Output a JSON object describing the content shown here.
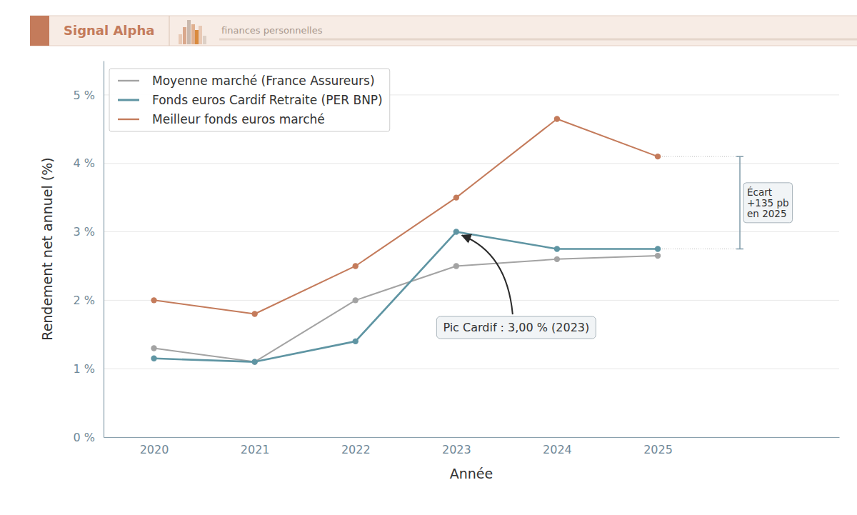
{
  "header": {
    "brand": "Signal Alpha",
    "tagline": "finances personnelles"
  },
  "chart_data": {
    "type": "line",
    "x": [
      2020,
      2021,
      2022,
      2023,
      2024,
      2025
    ],
    "xlim": [
      2019.5,
      2026.8
    ],
    "xticks": [
      2020,
      2021,
      2022,
      2023,
      2024,
      2025
    ],
    "ylim": [
      0,
      5.5
    ],
    "yticks": [
      {
        "value": 0,
        "label": "0 %"
      },
      {
        "value": 1,
        "label": "1 %"
      },
      {
        "value": 2,
        "label": "2 %"
      },
      {
        "value": 3,
        "label": "3 %"
      },
      {
        "value": 4,
        "label": "4 %"
      },
      {
        "value": 5,
        "label": "5 %"
      }
    ],
    "x_label": "Année",
    "y_label": "Rendement net annuel (%)",
    "grid": true,
    "legend": "upper left",
    "marker": "circle",
    "series": [
      {
        "name": "Moyenne marché (France Assureurs)",
        "color": "#a3a3a3",
        "values": [
          1.3,
          1.1,
          2.0,
          2.5,
          2.6,
          2.65
        ]
      },
      {
        "name": "Fonds euros Cardif Retraite (PER BNP)",
        "color": "#5f95a3",
        "values": [
          1.15,
          1.1,
          1.4,
          3.0,
          2.75,
          2.75
        ]
      },
      {
        "name": "Meilleur fonds euros marché",
        "color": "#c47b5b",
        "values": [
          2.0,
          1.8,
          2.5,
          3.5,
          4.65,
          4.1
        ]
      }
    ],
    "annotations": [
      {
        "text": "Pic Cardif : 3,00 % (2023)",
        "x": 2023,
        "y": 3.0
      },
      {
        "text": [
          "Écart",
          "+135 pb",
          "en 2025"
        ],
        "x": 2025,
        "y_from": 2.75,
        "y_to": 4.1
      }
    ]
  }
}
